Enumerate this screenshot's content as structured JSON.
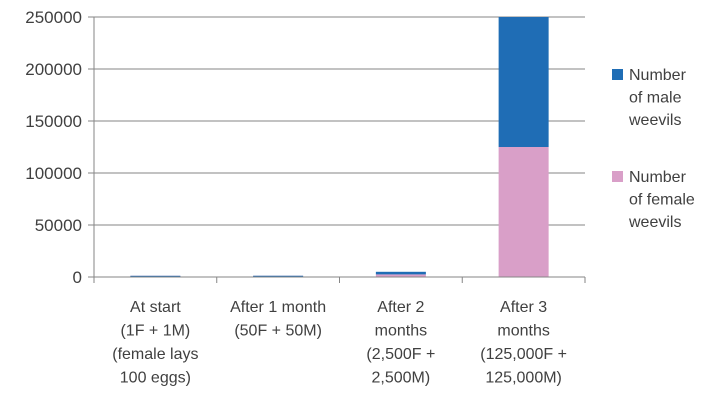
{
  "chart_data": {
    "type": "bar",
    "stacked": true,
    "categories": [
      [
        "At start",
        "(1F + 1M)",
        "(female lays",
        "100 eggs)"
      ],
      [
        "After 1 month",
        "(50F + 50M)"
      ],
      [
        "After 2",
        "months",
        "(2,500F +",
        "2,500M)"
      ],
      [
        "After 3",
        "months",
        "(125,000F +",
        "125,000M)"
      ]
    ],
    "series": [
      {
        "name": "Number of female weevils",
        "values": [
          1,
          50,
          2500,
          125000
        ],
        "color": "#d99fc8"
      },
      {
        "name": "Number of male weevils",
        "values": [
          1,
          50,
          2500,
          125000
        ],
        "color": "#1f6db5"
      }
    ],
    "ylim": [
      0,
      250000
    ],
    "yticks": [
      0,
      50000,
      100000,
      150000,
      200000,
      250000
    ],
    "ytick_labels": [
      "0",
      "50000",
      "100000",
      "150000",
      "200000",
      "250000"
    ],
    "grid": true,
    "legend": {
      "position": "right",
      "entries": [
        {
          "lines": [
            "Number",
            "of male",
            "weevils"
          ],
          "color": "#1f6db5"
        },
        {
          "lines": [
            "Number",
            "of female",
            "weevils"
          ],
          "color": "#d99fc8"
        }
      ]
    }
  }
}
